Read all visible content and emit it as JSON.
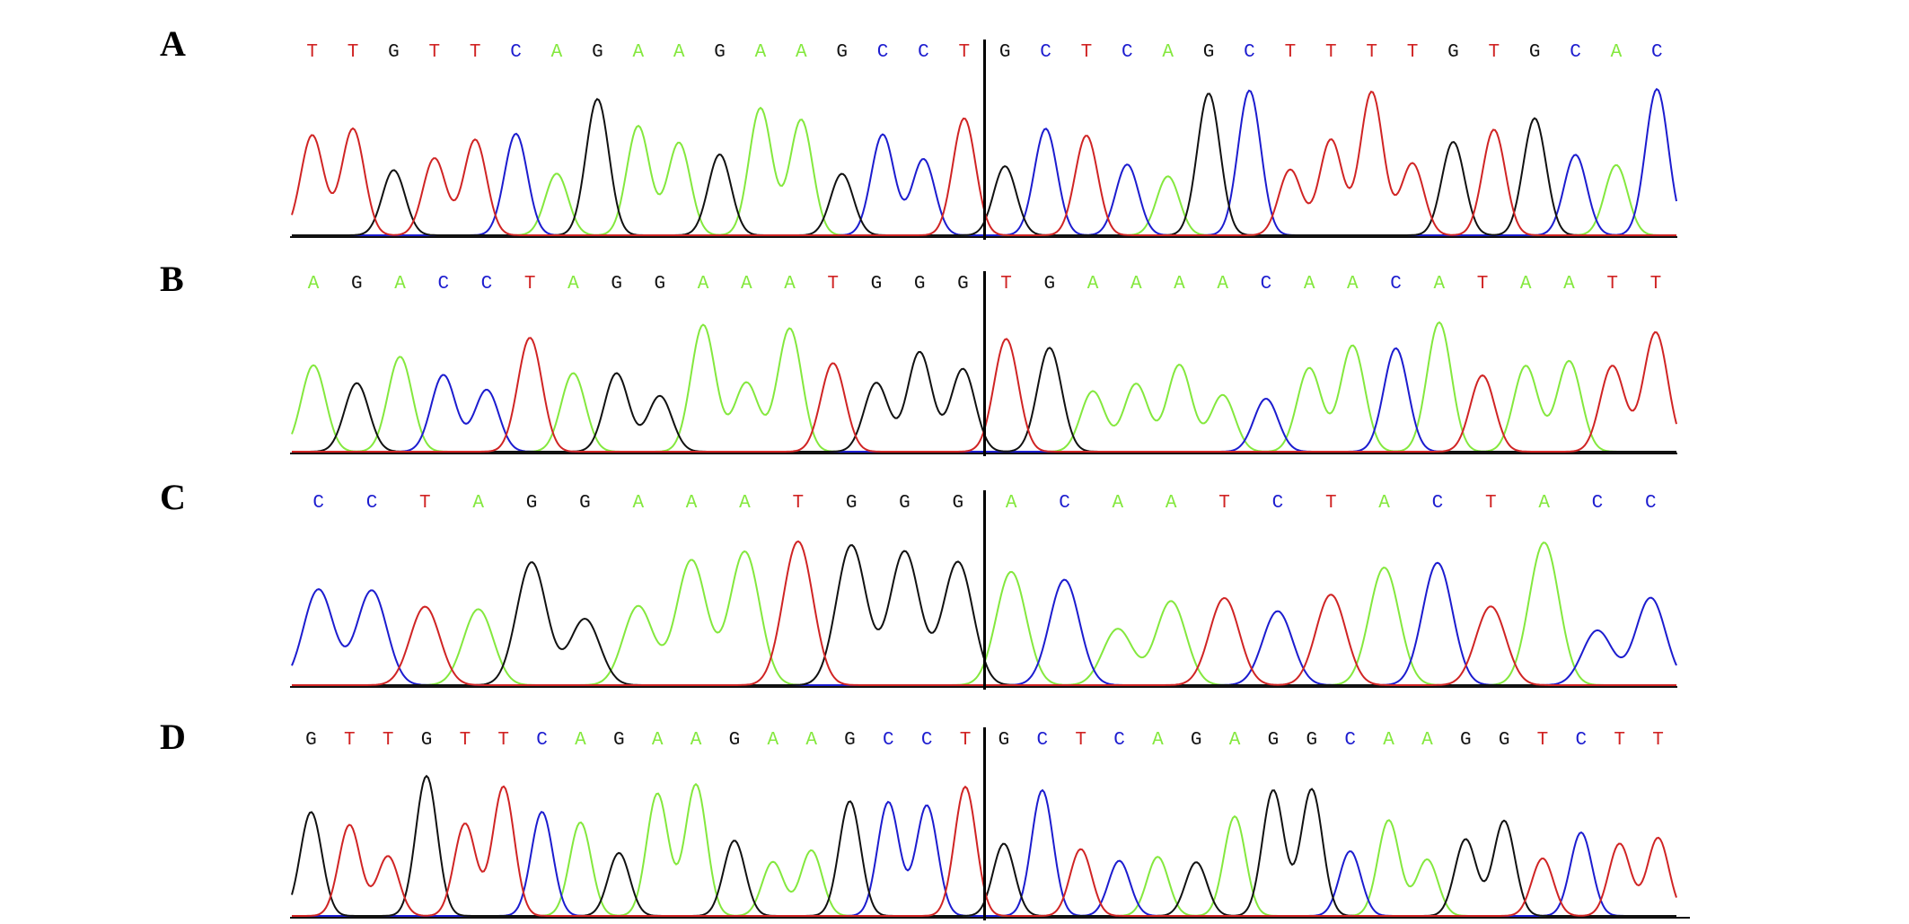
{
  "panels": [
    {
      "label": "A",
      "left": [
        "T",
        "T",
        "G",
        "T",
        "T",
        "C",
        "A",
        "G",
        "A",
        "A",
        "G",
        "A",
        "A",
        "G",
        "C",
        "C",
        "T"
      ],
      "right": [
        "G",
        "C",
        "T",
        "C",
        "A",
        "G",
        "C",
        "T",
        "T",
        "T",
        "T",
        "G",
        "T",
        "G",
        "C",
        "A",
        "C"
      ]
    },
    {
      "label": "B",
      "left": [
        "A",
        "G",
        "A",
        "C",
        "C",
        "T",
        "A",
        "G",
        "G",
        "A",
        "A",
        "A",
        "T",
        "G",
        "G",
        "G"
      ],
      "right": [
        "T",
        "G",
        "A",
        "A",
        "A",
        "A",
        "C",
        "A",
        "A",
        "C",
        "A",
        "T",
        "A",
        "A",
        "T",
        "T"
      ]
    },
    {
      "label": "C",
      "left": [
        "C",
        "C",
        "T",
        "A",
        "G",
        "G",
        "A",
        "A",
        "A",
        "T",
        "G",
        "G",
        "G"
      ],
      "right": [
        "A",
        "C",
        "A",
        "A",
        "T",
        "C",
        "T",
        "A",
        "C",
        "T",
        "A",
        "C",
        "C"
      ]
    },
    {
      "label": "D",
      "left": [
        "G",
        "T",
        "T",
        "G",
        "T",
        "T",
        "C",
        "A",
        "G",
        "A",
        "A",
        "G",
        "A",
        "A",
        "G",
        "C",
        "C",
        "T"
      ],
      "right": [
        "G",
        "C",
        "T",
        "C",
        "A",
        "G",
        "A",
        "G",
        "G",
        "C",
        "A",
        "A",
        "G",
        "G",
        "T",
        "C",
        "T",
        "T"
      ]
    }
  ],
  "base_colors": {
    "A": "#84e83e",
    "C": "#1c1ccf",
    "G": "#111111",
    "T": "#d02424"
  }
}
